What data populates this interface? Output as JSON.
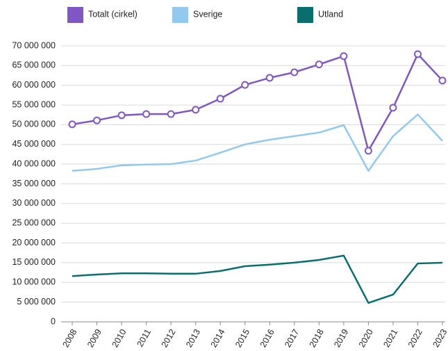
{
  "chart_data": {
    "type": "line",
    "categories": [
      "2008",
      "2009",
      "2010",
      "2011",
      "2012",
      "2013",
      "2014",
      "2015",
      "2016",
      "2017",
      "2018",
      "2019",
      "2020",
      "2021",
      "2022",
      "2023"
    ],
    "series": [
      {
        "name": "Totalt (cirkel)",
        "color": "#7e57c2",
        "marker": "circle",
        "values": [
          50100000,
          51100000,
          52400000,
          52700000,
          52700000,
          53800000,
          56600000,
          60100000,
          61900000,
          63300000,
          65300000,
          67400000,
          43400000,
          54300000,
          67900000,
          61200000
        ]
      },
      {
        "name": "Sverige",
        "color": "#93c9ec",
        "values": [
          38300000,
          38800000,
          39700000,
          39900000,
          40000000,
          40900000,
          42900000,
          45000000,
          46200000,
          47100000,
          48000000,
          49900000,
          38300000,
          47100000,
          52600000,
          45900000
        ]
      },
      {
        "name": "Utland",
        "color": "#0b6e6e",
        "values": [
          11600000,
          12000000,
          12300000,
          12300000,
          12200000,
          12200000,
          12900000,
          14100000,
          14500000,
          15000000,
          15700000,
          16800000,
          4800000,
          6900000,
          14800000,
          15000000
        ]
      }
    ],
    "ylim": [
      0,
      70000000
    ],
    "yticks": [
      0,
      {
        "value": 5000000,
        "label": "5 000 000"
      },
      {
        "value": 10000000,
        "label": "10 000 000"
      },
      {
        "value": 15000000,
        "label": "15 000 000"
      },
      {
        "value": 20000000,
        "label": "20 000 000"
      },
      {
        "value": 25000000,
        "label": "25 000 000"
      },
      {
        "value": 30000000,
        "label": "30 000 000"
      },
      {
        "value": 35000000,
        "label": "35 000 000"
      },
      {
        "value": 40000000,
        "label": "40 000 000"
      },
      {
        "value": 45000000,
        "label": "45 000 000"
      },
      {
        "value": 50000000,
        "label": "50 000 000"
      },
      {
        "value": 55000000,
        "label": "55 000 000"
      },
      {
        "value": 60000000,
        "label": "60 000 000"
      },
      {
        "value": 65000000,
        "label": "65 000 000"
      },
      {
        "value": 70000000,
        "label": "70 000 000"
      }
    ],
    "grid": true,
    "legend": "top"
  }
}
